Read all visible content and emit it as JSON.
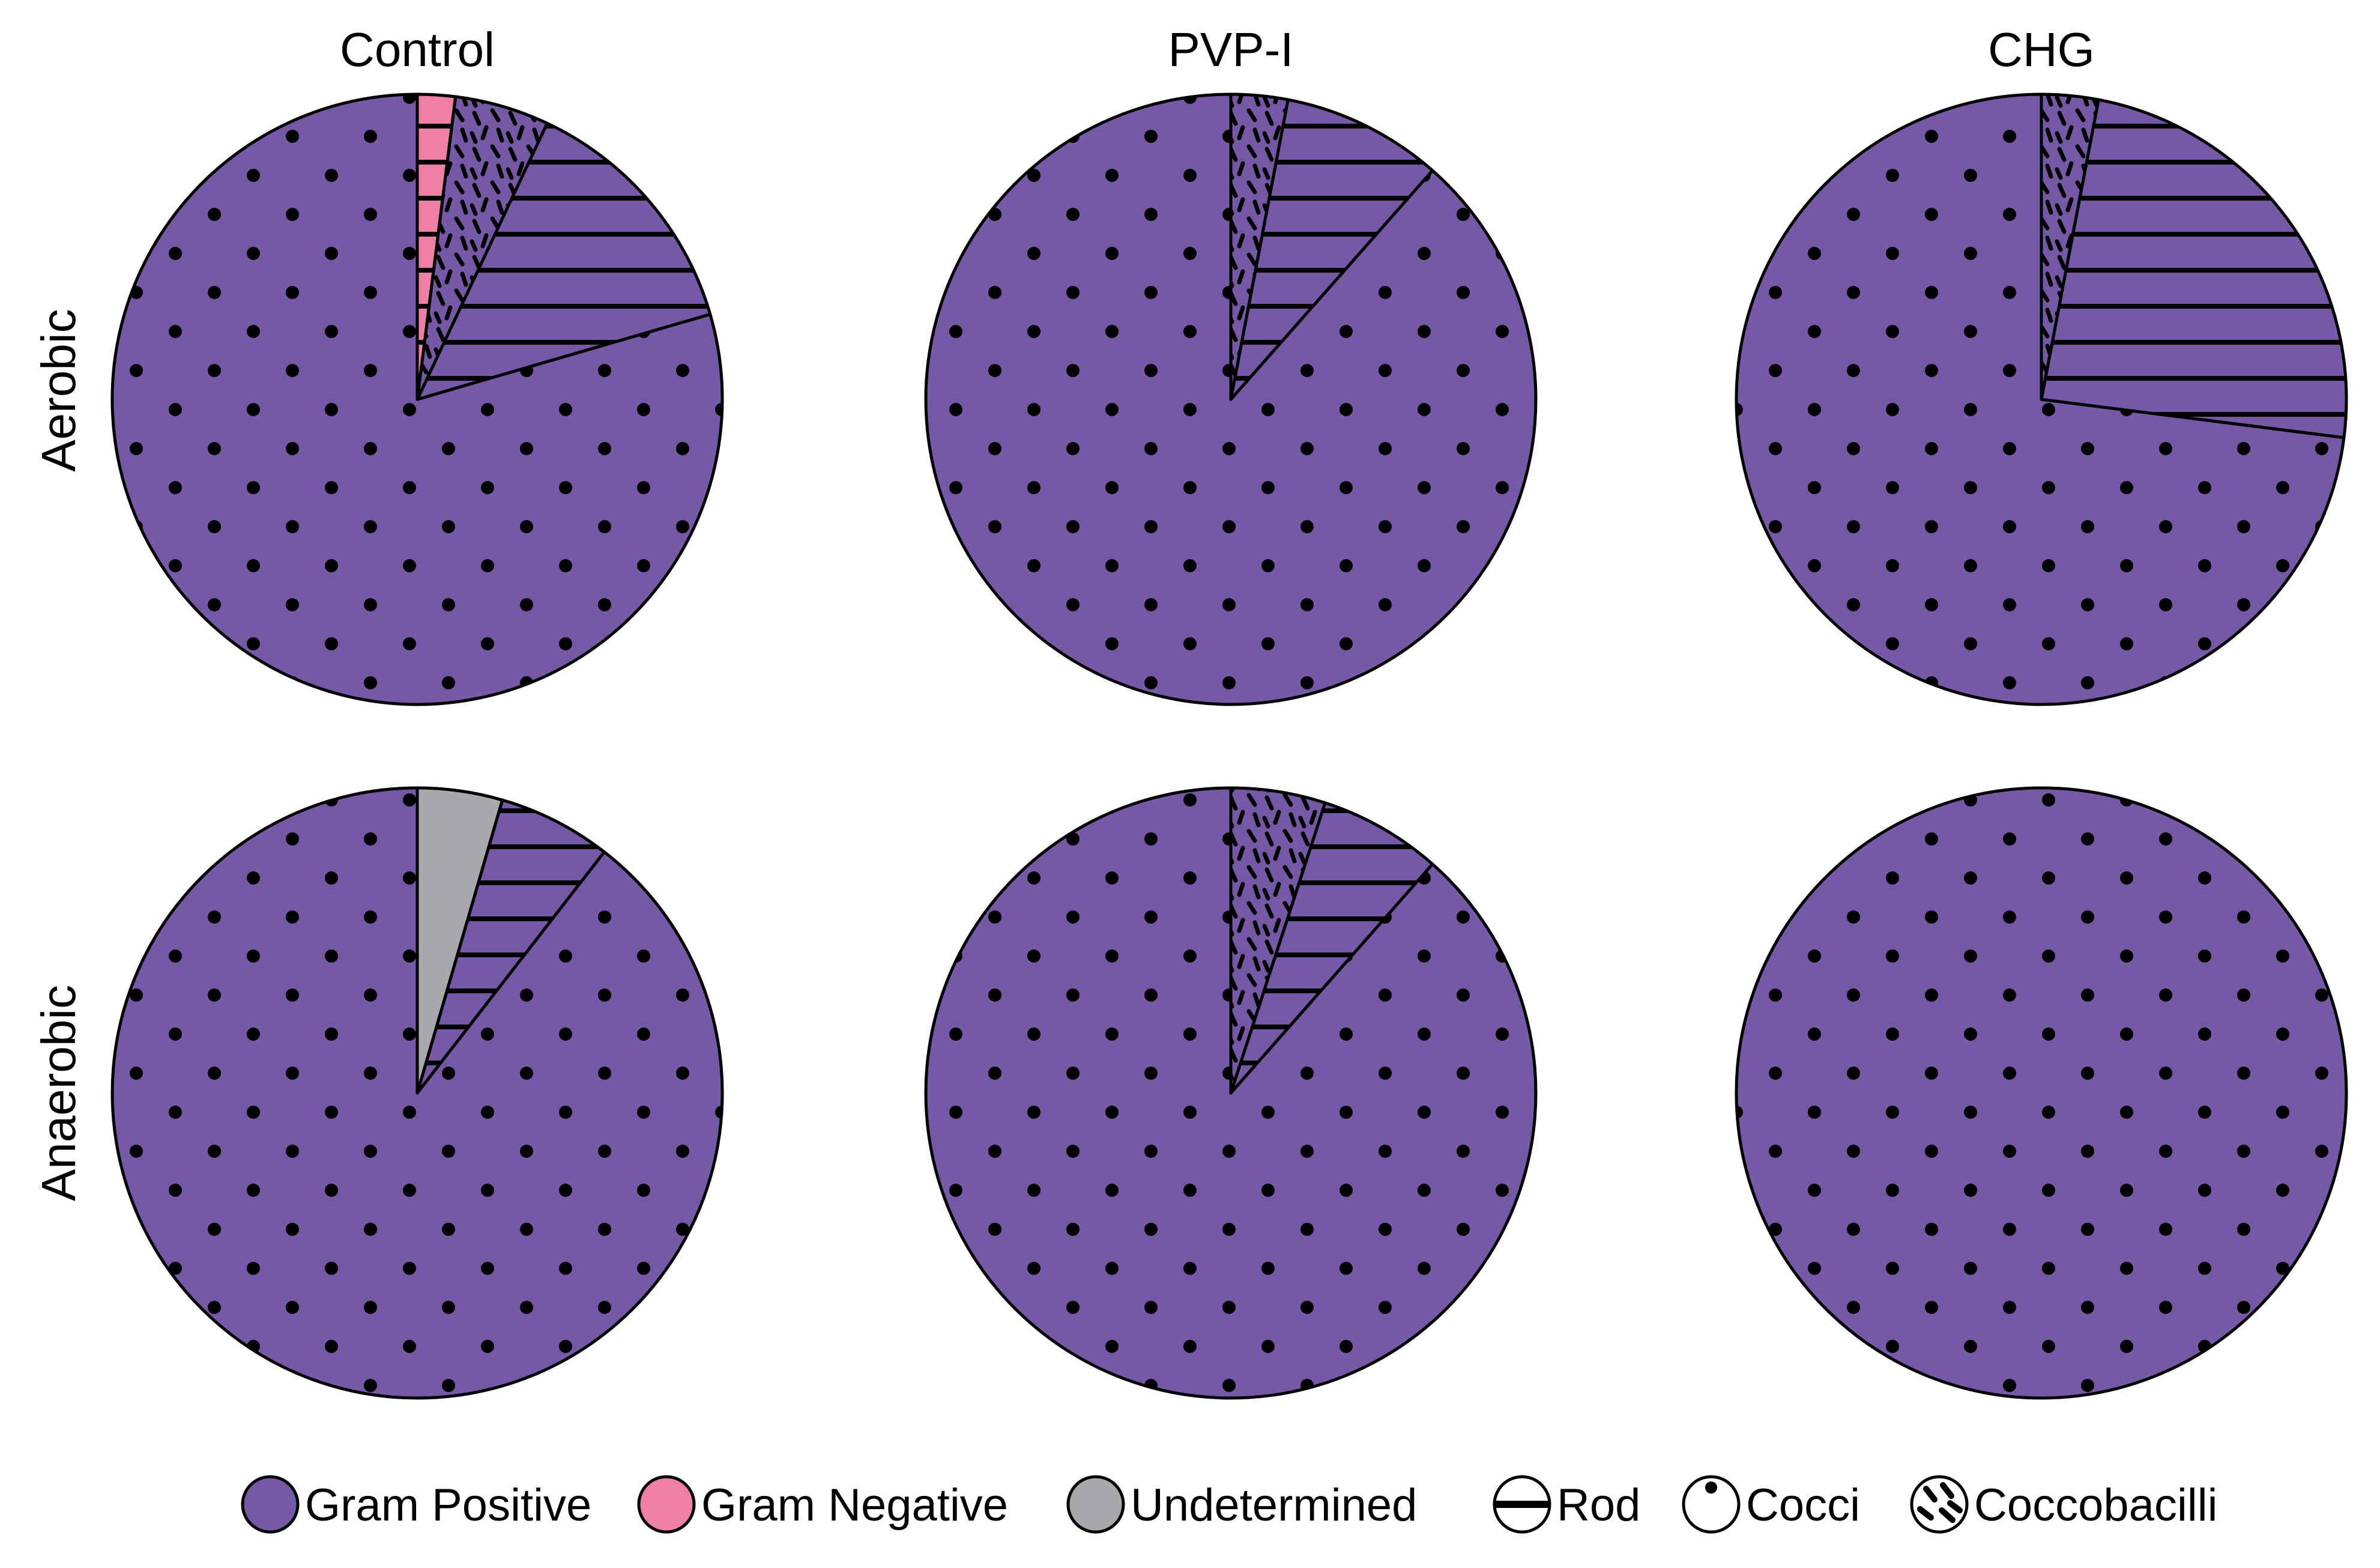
{
  "figure": {
    "colors": {
      "gram_positive": "#7558A6",
      "gram_negative": "#F07FA8",
      "undetermined": "#A7A9AC",
      "outline": "#000000",
      "background": "#FFFFFF"
    },
    "column_labels": [
      "Control",
      "PVP-I",
      "CHG"
    ],
    "row_labels": [
      "Aerobic",
      "Anaerobic"
    ],
    "legend": [
      {
        "label": "Gram Positive",
        "icon": "gram-positive-swatch-icon",
        "kind": "color",
        "color": "#7558A6"
      },
      {
        "label": "Gram Negative",
        "icon": "gram-negative-swatch-icon",
        "kind": "color",
        "color": "#F07FA8"
      },
      {
        "label": "Undetermined",
        "icon": "undetermined-swatch-icon",
        "kind": "color",
        "color": "#A7A9AC"
      },
      {
        "label": "Rod",
        "icon": "rod-pattern-icon",
        "kind": "pattern",
        "pattern": "rod"
      },
      {
        "label": "Cocci",
        "icon": "cocci-pattern-icon",
        "kind": "pattern",
        "pattern": "cocci"
      },
      {
        "label": "Coccobacilli",
        "icon": "coccobacilli-pattern-icon",
        "kind": "pattern",
        "pattern": "coccobacilli"
      }
    ]
  },
  "chart_data": [
    {
      "type": "pie",
      "group": "Control",
      "condition": "Aerobic",
      "slices": [
        {
          "gram": "Gram Positive",
          "shape": "Cocci",
          "value": 79.5
        },
        {
          "gram": "Gram Positive",
          "shape": "Rod",
          "value": 13.5
        },
        {
          "gram": "Gram Positive",
          "shape": "Coccobacilli",
          "value": 5.0
        },
        {
          "gram": "Gram Negative",
          "shape": "Rod",
          "value": 2.0
        }
      ]
    },
    {
      "type": "pie",
      "group": "PVP-I",
      "condition": "Aerobic",
      "slices": [
        {
          "gram": "Gram Positive",
          "shape": "Cocci",
          "value": 88.5
        },
        {
          "gram": "Gram Positive",
          "shape": "Rod",
          "value": 8.5
        },
        {
          "gram": "Gram Positive",
          "shape": "Coccobacilli",
          "value": 3.0
        }
      ]
    },
    {
      "type": "pie",
      "group": "CHG",
      "condition": "Aerobic",
      "slices": [
        {
          "gram": "Gram Positive",
          "shape": "Cocci",
          "value": 73.0
        },
        {
          "gram": "Gram Positive",
          "shape": "Rod",
          "value": 24.0
        },
        {
          "gram": "Gram Positive",
          "shape": "Coccobacilli",
          "value": 3.0
        }
      ]
    },
    {
      "type": "pie",
      "group": "Control",
      "condition": "Anaerobic",
      "slices": [
        {
          "gram": "Gram Positive",
          "shape": "Cocci",
          "value": 89.5
        },
        {
          "gram": "Gram Positive",
          "shape": "Rod",
          "value": 6.0
        },
        {
          "gram": "Undetermined",
          "shape": "Undetermined",
          "value": 4.5
        }
      ]
    },
    {
      "type": "pie",
      "group": "PVP-I",
      "condition": "Anaerobic",
      "slices": [
        {
          "gram": "Gram Positive",
          "shape": "Cocci",
          "value": 88.5
        },
        {
          "gram": "Gram Positive",
          "shape": "Rod",
          "value": 6.5
        },
        {
          "gram": "Gram Positive",
          "shape": "Coccobacilli",
          "value": 5.0
        }
      ]
    },
    {
      "type": "pie",
      "group": "CHG",
      "condition": "Anaerobic",
      "slices": [
        {
          "gram": "Gram Positive",
          "shape": "Cocci",
          "value": 100.0
        }
      ]
    }
  ]
}
